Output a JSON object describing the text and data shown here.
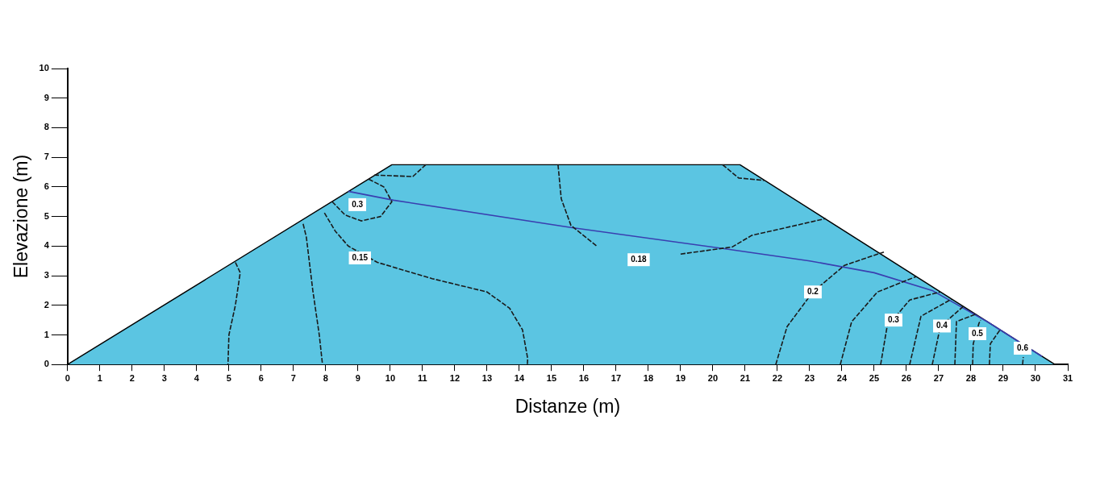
{
  "chart_data": {
    "type": "line",
    "xlabel": "Distanze (m)",
    "ylabel": "Elevazione (m)",
    "xlim": [
      0,
      31
    ],
    "xticks": [
      0,
      1,
      2,
      3,
      4,
      5,
      6,
      7,
      8,
      9,
      10,
      11,
      12,
      13,
      14,
      15,
      16,
      17,
      18,
      19,
      20,
      21,
      22,
      23,
      24,
      25,
      26,
      27,
      28,
      29,
      30,
      31
    ],
    "ylim": [
      0,
      10
    ],
    "yticks": [
      0,
      1,
      2,
      3,
      4,
      5,
      6,
      7,
      8,
      9,
      10
    ],
    "grid": false,
    "legend": false,
    "marker": "none",
    "series": [
      {
        "type": "area",
        "color": "#5bc5e2",
        "x": [
          0,
          10.05,
          20.84,
          30.6
        ],
        "values": [
          0,
          6.75,
          6.75,
          0
        ]
      },
      {
        "type": "line",
        "color": "#1a1a1a",
        "line_style": "dashed",
        "x": [
          5.2,
          5.35,
          5.2,
          5.0,
          4.97,
          null,
          7.3,
          7.4,
          7.6,
          7.8,
          7.9,
          null,
          7.96,
          8.3,
          8.7,
          9.6,
          11.3,
          13.0,
          13.7,
          14.1,
          14.26,
          14.25,
          null,
          8.2,
          8.6,
          9.1,
          9.7,
          10.05,
          9.8,
          9.3,
          null,
          9.5,
          10.7,
          11.1,
          null,
          15.2,
          15.3,
          15.6,
          16.4,
          null,
          19.0,
          20.6,
          21.2,
          23.5,
          null,
          20.3,
          20.8,
          21.6,
          null,
          21.95,
          22.3,
          23.1,
          24.08,
          25.3,
          null,
          23.95,
          24.3,
          25.1,
          26.3,
          null,
          25.2,
          25.4,
          26.1,
          27.05,
          null,
          26.1,
          26.45,
          27.4,
          null,
          26.8,
          27.05,
          27.8,
          null,
          27.5,
          27.55,
          28.15,
          null,
          28.05,
          28.07,
          28.25,
          28.3,
          null,
          28.57,
          28.6,
          28.9,
          null,
          29.6,
          29.62
        ],
        "values": [
          3.45,
          3.1,
          2,
          1,
          0,
          null,
          4.75,
          4.3,
          2.5,
          1,
          0,
          null,
          5.12,
          4.5,
          4.0,
          3.45,
          2.9,
          2.45,
          1.9,
          1.17,
          0.2,
          0,
          null,
          5.5,
          5.05,
          4.85,
          5.0,
          5.5,
          6.0,
          6.28,
          null,
          6.4,
          6.35,
          6.75,
          null,
          6.75,
          5.6,
          4.7,
          4.0,
          null,
          3.73,
          3.97,
          4.36,
          4.93,
          null,
          6.75,
          6.3,
          6.22,
          null,
          0,
          1.28,
          2.45,
          3.35,
          3.8,
          null,
          0,
          1.44,
          2.45,
          2.97,
          null,
          0,
          1.28,
          2.18,
          2.45,
          null,
          0,
          1.63,
          2.21,
          null,
          0,
          1.28,
          2.0,
          null,
          0,
          1.45,
          1.7,
          null,
          0,
          0.7,
          1.4,
          1.5,
          null,
          0,
          0.7,
          1.17,
          null,
          0,
          0.25
        ]
      },
      {
        "type": "line",
        "color": "#3a3fb0",
        "line_style": "solid",
        "x": [
          8.7,
          10.1,
          15.6,
          20.3,
          23.0,
          25.0,
          26.8,
          28.5,
          30.2
        ],
        "values": [
          5.85,
          5.55,
          4.63,
          3.92,
          3.5,
          3.1,
          2.5,
          1.45,
          0.27
        ]
      }
    ],
    "annotations": [
      {
        "text": "0.3",
        "x": 8.98,
        "y": 5.4
      },
      {
        "text": "0.15",
        "x": 9.06,
        "y": 3.6
      },
      {
        "text": "0.18",
        "x": 17.7,
        "y": 3.54
      },
      {
        "text": "0.2",
        "x": 23.1,
        "y": 2.45
      },
      {
        "text": "0.3",
        "x": 25.6,
        "y": 1.5
      },
      {
        "text": "0.4",
        "x": 27.1,
        "y": 1.3
      },
      {
        "text": "0.5",
        "x": 28.2,
        "y": 1.04
      },
      {
        "text": "0.6",
        "x": 29.6,
        "y": 0.55
      }
    ]
  }
}
